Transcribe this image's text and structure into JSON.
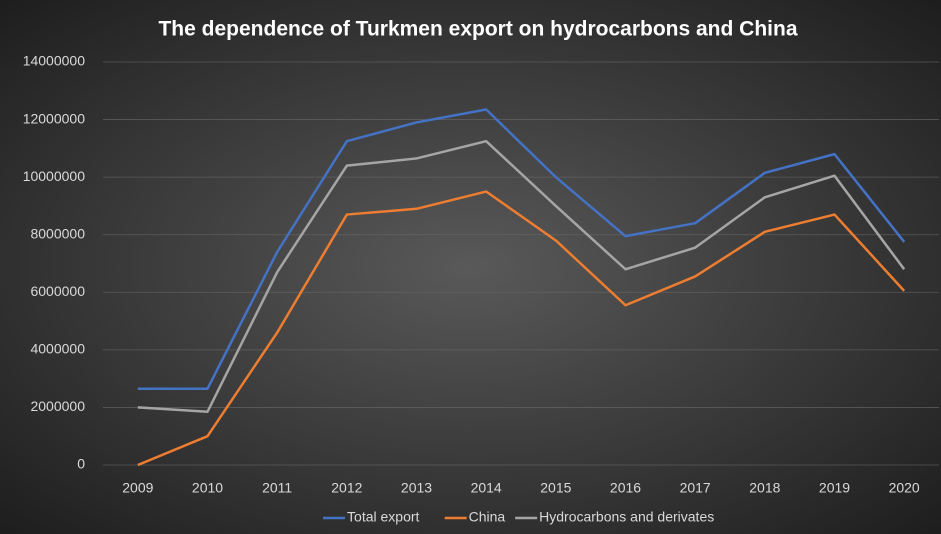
{
  "chart_data": {
    "type": "line",
    "title": "The dependence of Turkmen export on hydrocarbons and China",
    "categories": [
      "2009",
      "2010",
      "2011",
      "2012",
      "2013",
      "2014",
      "2015",
      "2016",
      "2017",
      "2018",
      "2019",
      "2020"
    ],
    "series": [
      {
        "name": "Total export",
        "color": "#4472c4",
        "values": [
          2650000,
          2650000,
          7400000,
          11250000,
          11900000,
          12350000,
          10000000,
          7950000,
          8400000,
          10150000,
          10800000,
          7750000
        ]
      },
      {
        "name": "China",
        "color": "#ed7d31",
        "values": [
          0,
          1000000,
          4600000,
          8700000,
          8900000,
          9500000,
          7800000,
          5550000,
          6550000,
          8100000,
          8700000,
          6050000
        ]
      },
      {
        "name": "Hydrocarbons and derivates",
        "color": "#a5a5a5",
        "values": [
          2000000,
          1850000,
          6700000,
          10400000,
          10650000,
          11250000,
          9000000,
          6800000,
          7550000,
          9300000,
          10050000,
          6800000
        ]
      }
    ],
    "ylim": [
      0,
      14000000
    ],
    "yticks": [
      0,
      2000000,
      4000000,
      6000000,
      8000000,
      10000000,
      12000000,
      14000000
    ],
    "grid": true,
    "legend": "bottom"
  }
}
